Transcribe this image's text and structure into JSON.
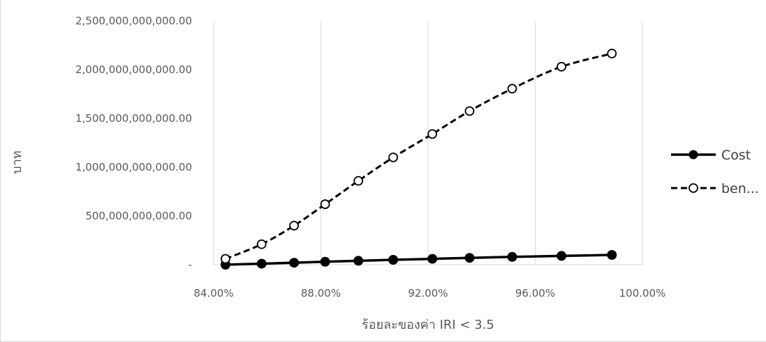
{
  "chart_data": {
    "type": "line",
    "title": "",
    "xlabel": "ร้อยละของค่า IRI < 3.5",
    "ylabel": "บาท",
    "xlim": [
      0.84,
      1.0
    ],
    "ylim": [
      0,
      2500000000000
    ],
    "x_ticks": [
      0.84,
      0.88,
      0.92,
      0.96,
      1.0
    ],
    "x_tick_labels": [
      "84.00%",
      "88.00%",
      "92.00%",
      "96.00%",
      "100.00%"
    ],
    "y_ticks": [
      0,
      500000000000,
      1000000000000,
      1500000000000,
      2000000000000,
      2500000000000
    ],
    "y_tick_labels": [
      "-",
      "500,000,000,000.00",
      "1,000,000,000,000.00",
      "1,500,000,000,000.00",
      "2,000,000,000,000.00",
      "2,500,000,000,000.00"
    ],
    "grid": "vertical",
    "legend_position": "right",
    "series": [
      {
        "name": "Cost",
        "style": "solid",
        "marker": "filled-circle",
        "color": "#000000",
        "x": [
          0.8444,
          0.8579,
          0.87,
          0.8816,
          0.894,
          0.907,
          0.9216,
          0.9355,
          0.9514,
          0.9698,
          0.9886
        ],
        "y": [
          0,
          10000000000,
          20000000000,
          30000000000,
          40000000000,
          50000000000,
          60000000000,
          70000000000,
          80000000000,
          90000000000,
          100000000000
        ]
      },
      {
        "name": "ben...",
        "style": "dashed",
        "marker": "open-circle",
        "color": "#000000",
        "x": [
          0.8444,
          0.8579,
          0.87,
          0.8816,
          0.894,
          0.907,
          0.9216,
          0.9355,
          0.9514,
          0.9698,
          0.9886
        ],
        "y": [
          60000000000,
          210000000000,
          400000000000,
          620000000000,
          860000000000,
          1100000000000,
          1340000000000,
          1575000000000,
          1805000000000,
          2030000000000,
          2165000000000
        ]
      }
    ]
  }
}
